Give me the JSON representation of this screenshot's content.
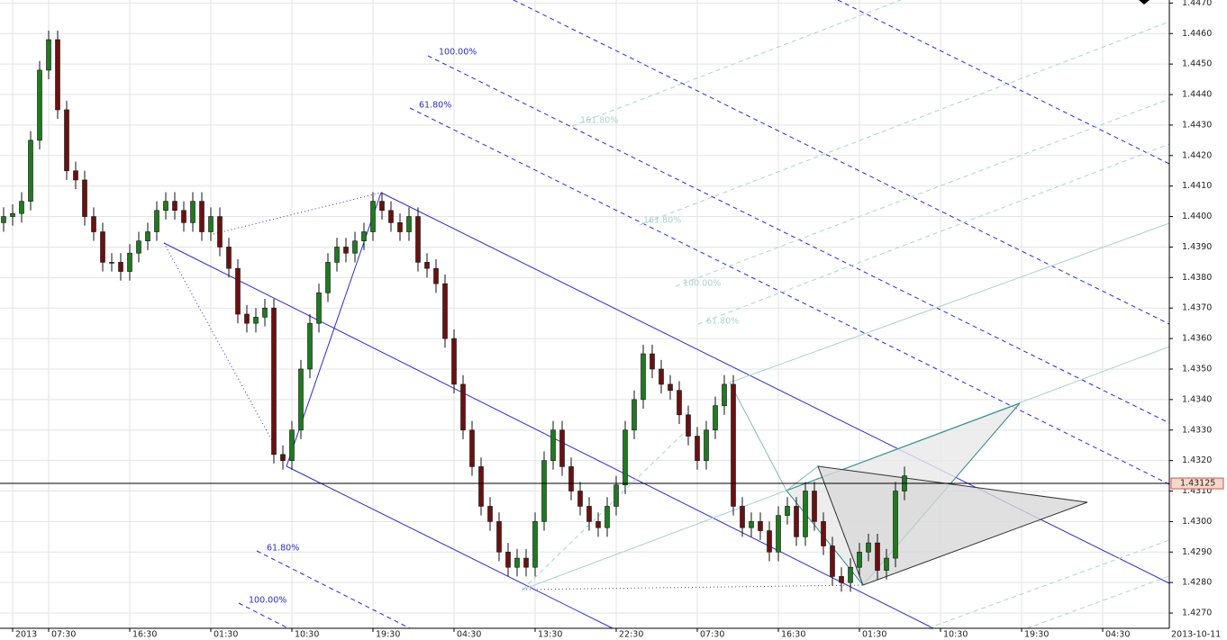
{
  "chart_data": {
    "type": "candlestick",
    "open": [
      1.4398,
      1.44,
      1.4401,
      1.4405,
      1.4425,
      1.4448,
      1.4458,
      1.4435,
      1.4415,
      1.4412,
      1.44,
      1.4395,
      1.4385,
      1.4385,
      1.4382,
      1.4388,
      1.4392,
      1.4395,
      1.4402,
      1.4405,
      1.4402,
      1.4398,
      1.4405,
      1.4395,
      1.44,
      1.439,
      1.4383,
      1.4368,
      1.4365,
      1.4367,
      1.437,
      1.4322,
      1.432,
      1.433,
      1.435,
      1.4365,
      1.4375,
      1.4385,
      1.439,
      1.4388,
      1.4392,
      1.4395,
      1.4405,
      1.4402,
      1.4398,
      1.4395,
      1.44,
      1.4385,
      1.4383,
      1.4378,
      1.436,
      1.4345,
      1.433,
      1.4318,
      1.4305,
      1.43,
      1.429,
      1.4285,
      1.4288,
      1.4285,
      1.43,
      1.432,
      1.433,
      1.4318,
      1.431,
      1.4305,
      1.43,
      1.4298,
      1.4305,
      1.4312,
      1.433,
      1.434,
      1.4355,
      1.435,
      1.4345,
      1.4343,
      1.4335,
      1.4328,
      1.432,
      1.433,
      1.4338,
      1.4345,
      1.4305,
      1.4298,
      1.43,
      1.4297,
      1.429,
      1.4302,
      1.4305,
      1.4295,
      1.431,
      1.43,
      1.4292,
      1.4282,
      1.428,
      1.4285,
      1.429,
      1.4293,
      1.4284,
      1.4288,
      1.431
    ],
    "high": [
      1.4403,
      1.4404,
      1.4408,
      1.4428,
      1.4451,
      1.4461,
      1.4461,
      1.4438,
      1.4418,
      1.4415,
      1.4403,
      1.4398,
      1.4388,
      1.4388,
      1.4391,
      1.4395,
      1.4398,
      1.4405,
      1.4408,
      1.4408,
      1.4405,
      1.4408,
      1.4408,
      1.4403,
      1.4403,
      1.4393,
      1.4386,
      1.4371,
      1.437,
      1.4373,
      1.4373,
      1.4325,
      1.4333,
      1.4353,
      1.4368,
      1.4378,
      1.4388,
      1.4393,
      1.4393,
      1.4395,
      1.4398,
      1.4408,
      1.4408,
      1.4405,
      1.4401,
      1.4403,
      1.4403,
      1.4388,
      1.4386,
      1.4381,
      1.4363,
      1.4348,
      1.4333,
      1.4321,
      1.4308,
      1.4303,
      1.4293,
      1.4291,
      1.4291,
      1.4303,
      1.4323,
      1.4333,
      1.4333,
      1.4321,
      1.4313,
      1.4308,
      1.4303,
      1.4308,
      1.4315,
      1.4333,
      1.4343,
      1.4358,
      1.4358,
      1.4353,
      1.4348,
      1.4346,
      1.4338,
      1.4331,
      1.4333,
      1.4341,
      1.4348,
      1.4348,
      1.4308,
      1.4303,
      1.4303,
      1.43,
      1.4305,
      1.4308,
      1.4308,
      1.4313,
      1.4313,
      1.4303,
      1.4295,
      1.4285,
      1.4288,
      1.4293,
      1.4296,
      1.4296,
      1.4291,
      1.4313,
      1.4318
    ],
    "low": [
      1.4395,
      1.4397,
      1.4398,
      1.4402,
      1.4422,
      1.4445,
      1.4432,
      1.4412,
      1.4409,
      1.4397,
      1.4392,
      1.4382,
      1.4382,
      1.4379,
      1.4379,
      1.4385,
      1.4389,
      1.4392,
      1.4399,
      1.4399,
      1.4395,
      1.4395,
      1.4392,
      1.4392,
      1.4387,
      1.438,
      1.4365,
      1.4362,
      1.4362,
      1.4364,
      1.4319,
      1.4317,
      1.4317,
      1.4327,
      1.4347,
      1.4362,
      1.4372,
      1.4382,
      1.4385,
      1.4385,
      1.4389,
      1.4392,
      1.4399,
      1.4395,
      1.4392,
      1.4392,
      1.4382,
      1.438,
      1.4375,
      1.4357,
      1.4342,
      1.4327,
      1.4315,
      1.4302,
      1.4297,
      1.4287,
      1.4282,
      1.4282,
      1.4282,
      1.4282,
      1.4297,
      1.4317,
      1.4315,
      1.4307,
      1.4302,
      1.4297,
      1.4295,
      1.4295,
      1.4302,
      1.4309,
      1.4327,
      1.4337,
      1.4347,
      1.4342,
      1.434,
      1.4332,
      1.4325,
      1.4317,
      1.4317,
      1.4327,
      1.4335,
      1.4302,
      1.4295,
      1.4295,
      1.4294,
      1.4287,
      1.4287,
      1.4299,
      1.4292,
      1.4292,
      1.4297,
      1.4289,
      1.4279,
      1.4277,
      1.4277,
      1.4282,
      1.4287,
      1.4281,
      1.4281,
      1.4285,
      1.4307
    ],
    "close": [
      1.44,
      1.4401,
      1.4405,
      1.4425,
      1.4448,
      1.4458,
      1.4435,
      1.4415,
      1.4412,
      1.44,
      1.4395,
      1.4385,
      1.4385,
      1.4382,
      1.4388,
      1.4392,
      1.4395,
      1.4402,
      1.4405,
      1.4402,
      1.4398,
      1.4405,
      1.4395,
      1.44,
      1.439,
      1.4383,
      1.4368,
      1.4365,
      1.4367,
      1.437,
      1.4322,
      1.432,
      1.433,
      1.435,
      1.4365,
      1.4375,
      1.4385,
      1.439,
      1.4388,
      1.4392,
      1.4395,
      1.4405,
      1.4402,
      1.4398,
      1.4395,
      1.44,
      1.4385,
      1.4383,
      1.4378,
      1.436,
      1.4345,
      1.433,
      1.4318,
      1.4305,
      1.43,
      1.429,
      1.4285,
      1.4288,
      1.4285,
      1.43,
      1.432,
      1.433,
      1.4318,
      1.431,
      1.4305,
      1.43,
      1.4298,
      1.4305,
      1.4312,
      1.433,
      1.434,
      1.4355,
      1.435,
      1.4345,
      1.4343,
      1.4335,
      1.4328,
      1.432,
      1.433,
      1.4338,
      1.4345,
      1.4305,
      1.4298,
      1.43,
      1.4297,
      1.429,
      1.4302,
      1.4305,
      1.4295,
      1.431,
      1.43,
      1.4292,
      1.4282,
      1.428,
      1.4285,
      1.429,
      1.4293,
      1.4284,
      1.4288,
      1.431,
      1.4315
    ],
    "up_color": "#1f7a1f",
    "down_color": "#6b1010",
    "xlim": [
      -0.4,
      129.4
    ],
    "xticks": [
      {
        "value": 1,
        "label": "2013"
      },
      {
        "value": 5,
        "label": "07:30"
      },
      {
        "value": 14,
        "label": "16:30"
      },
      {
        "value": 23,
        "label": "01:30"
      },
      {
        "value": 32,
        "label": "10:30"
      },
      {
        "value": 41,
        "label": "19:30"
      },
      {
        "value": 50,
        "label": "04:30"
      },
      {
        "value": 59,
        "label": "13:30"
      },
      {
        "value": 68,
        "label": "22:30"
      },
      {
        "value": 77,
        "label": "07:30"
      },
      {
        "value": 86,
        "label": "16:30"
      },
      {
        "value": 95,
        "label": "01:30"
      },
      {
        "value": 104,
        "label": "10:30"
      },
      {
        "value": 113,
        "label": "19:30"
      },
      {
        "value": 122,
        "label": "04:30"
      }
    ],
    "date_label": "2013-10-11",
    "ylim": [
      1.4265,
      1.4471
    ],
    "yticks": [
      {
        "value": 1.427,
        "label": "1.4270"
      },
      {
        "value": 1.428,
        "label": "1.4280"
      },
      {
        "value": 1.429,
        "label": "1.4290"
      },
      {
        "value": 1.43,
        "label": "1.4300"
      },
      {
        "value": 1.431,
        "label": "1.4310"
      },
      {
        "value": 1.432,
        "label": "1.4320"
      },
      {
        "value": 1.433,
        "label": "1.4330"
      },
      {
        "value": 1.434,
        "label": "1.4340"
      },
      {
        "value": 1.435,
        "label": "1.4350"
      },
      {
        "value": 1.436,
        "label": "1.4360"
      },
      {
        "value": 1.437,
        "label": "1.4370"
      },
      {
        "value": 1.438,
        "label": "1.4380"
      },
      {
        "value": 1.439,
        "label": "1.4390"
      },
      {
        "value": 1.44,
        "label": "1.4400"
      },
      {
        "value": 1.441,
        "label": "1.4410"
      },
      {
        "value": 1.442,
        "label": "1.4420"
      },
      {
        "value": 1.443,
        "label": "1.4430"
      },
      {
        "value": 1.444,
        "label": "1.4440"
      },
      {
        "value": 1.445,
        "label": "1.4450"
      },
      {
        "value": 1.446,
        "label": "1.4460"
      },
      {
        "value": 1.447,
        "label": "1.4470"
      }
    ],
    "grid": true,
    "last_price": 1.43125,
    "annotations": [
      "100.00%",
      "61.80%",
      "161.80%",
      "161.80%",
      "100.00%",
      "61.80%",
      "61.80%",
      "100.00%"
    ]
  }
}
